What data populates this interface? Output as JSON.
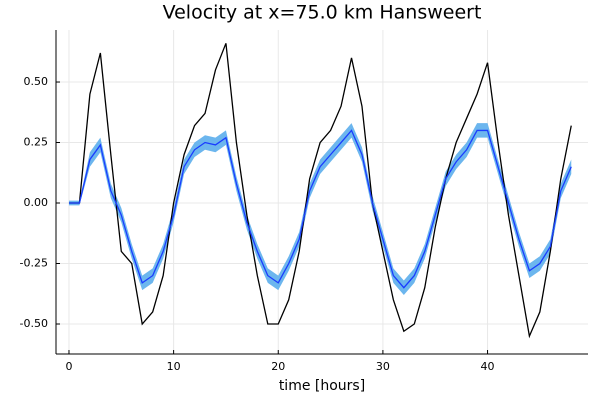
{
  "chart_data": {
    "type": "line",
    "title": "Velocity at x=75.0 km Hansweert",
    "xlabel": "time [hours]",
    "x": [
      0,
      1,
      2,
      3,
      4,
      5,
      6,
      7,
      8,
      9,
      10,
      11,
      12,
      13,
      14,
      15,
      16,
      17,
      18,
      19,
      20,
      21,
      22,
      23,
      24,
      25,
      26,
      27,
      28,
      29,
      30,
      31,
      32,
      33,
      34,
      35,
      36,
      37,
      38,
      39,
      40,
      41,
      42,
      43,
      44,
      45,
      46,
      47,
      48
    ],
    "series": [
      {
        "color": "#1a3cff",
        "band_color": "#6cb6ee",
        "values": [
          0,
          0,
          0.18,
          0.24,
          0.05,
          -0.05,
          -0.2,
          -0.33,
          -0.3,
          -0.2,
          -0.05,
          0.15,
          0.22,
          0.25,
          0.24,
          0.27,
          0.08,
          -0.08,
          -0.2,
          -0.3,
          -0.33,
          -0.25,
          -0.15,
          0.05,
          0.15,
          0.2,
          0.25,
          0.3,
          0.2,
          0,
          -0.15,
          -0.3,
          -0.35,
          -0.3,
          -0.2,
          -0.05,
          0.1,
          0.17,
          0.22,
          0.3,
          0.3,
          0.15,
          0,
          -0.15,
          -0.28,
          -0.25,
          -0.18,
          0.05,
          0.15
        ],
        "lower": [
          -0.01,
          -0.01,
          0.15,
          0.21,
          0.02,
          -0.08,
          -0.23,
          -0.36,
          -0.33,
          -0.23,
          -0.08,
          0.12,
          0.19,
          0.22,
          0.21,
          0.24,
          0.05,
          -0.11,
          -0.23,
          -0.33,
          -0.36,
          -0.28,
          -0.18,
          0.02,
          0.12,
          0.17,
          0.22,
          0.27,
          0.17,
          -0.03,
          -0.18,
          -0.33,
          -0.38,
          -0.33,
          -0.23,
          -0.08,
          0.07,
          0.14,
          0.19,
          0.27,
          0.27,
          0.12,
          -0.03,
          -0.18,
          -0.31,
          -0.28,
          -0.21,
          0.02,
          0.12
        ],
        "upper": [
          0.01,
          0.01,
          0.21,
          0.27,
          0.08,
          -0.02,
          -0.17,
          -0.3,
          -0.27,
          -0.17,
          -0.02,
          0.18,
          0.25,
          0.28,
          0.27,
          0.3,
          0.11,
          -0.05,
          -0.17,
          -0.27,
          -0.3,
          -0.22,
          -0.12,
          0.08,
          0.18,
          0.23,
          0.28,
          0.33,
          0.23,
          0.03,
          -0.12,
          -0.27,
          -0.32,
          -0.27,
          -0.17,
          -0.02,
          0.13,
          0.2,
          0.25,
          0.33,
          0.33,
          0.18,
          0.03,
          -0.12,
          -0.25,
          -0.22,
          -0.15,
          0.08,
          0.18
        ]
      },
      {
        "color": "#000000",
        "values": [
          0,
          0,
          0.45,
          0.62,
          0.2,
          -0.2,
          -0.25,
          -0.5,
          -0.45,
          -0.3,
          0,
          0.2,
          0.32,
          0.37,
          0.55,
          0.66,
          0.25,
          -0.05,
          -0.3,
          -0.5,
          -0.5,
          -0.4,
          -0.2,
          0.1,
          0.25,
          0.3,
          0.4,
          0.6,
          0.4,
          0,
          -0.2,
          -0.4,
          -0.53,
          -0.5,
          -0.35,
          -0.1,
          0.1,
          0.25,
          0.35,
          0.45,
          0.58,
          0.25,
          -0.05,
          -0.3,
          -0.55,
          -0.45,
          -0.2,
          0.1,
          0.32
        ]
      }
    ],
    "xlim": [
      -1.24,
      49.6
    ],
    "xticks": [
      0,
      10,
      20,
      30,
      40
    ],
    "ylim": [
      -0.624,
      0.715
    ],
    "yticks": [
      {
        "value": -0.5,
        "label": "-0.50"
      },
      -0.25,
      {
        "value": 0,
        "label": "0.00"
      },
      0.25,
      {
        "value": 0.5,
        "label": "0.50"
      }
    ],
    "grid": true
  }
}
